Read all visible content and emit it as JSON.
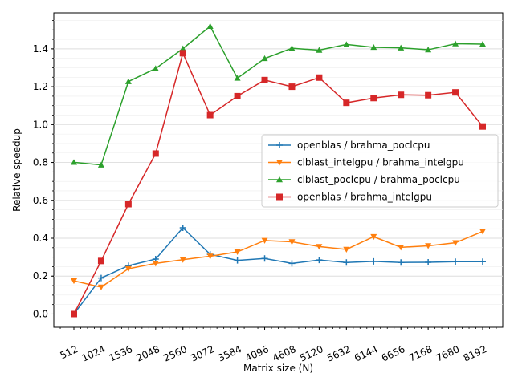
{
  "chart_data": {
    "type": "line",
    "xlabel": "Matrix size (N)",
    "ylabel": "Relative speedup",
    "categories": [
      "512",
      "1024",
      "1536",
      "2048",
      "2560",
      "3072",
      "3584",
      "4096",
      "4608",
      "5120",
      "5632",
      "6144",
      "6656",
      "7168",
      "7680",
      "8192"
    ],
    "x": [
      512,
      1024,
      1536,
      2048,
      2560,
      3072,
      3584,
      4096,
      4608,
      5120,
      5632,
      6144,
      6656,
      7168,
      7680,
      8192
    ],
    "ylim": [
      -0.07,
      1.59
    ],
    "yticks": [
      0.0,
      0.2,
      0.4,
      0.6,
      0.8,
      1.0,
      1.2,
      1.4
    ],
    "ytick_labels": [
      "0.0",
      "0.2",
      "0.4",
      "0.6",
      "0.8",
      "1.0",
      "1.2",
      "1.4"
    ],
    "grid": "horizontal",
    "legend_position": "center-right",
    "series": [
      {
        "name": "openblas / brahma_poclcpu",
        "color": "#1f77b4",
        "marker": "plus",
        "values": [
          0.0,
          0.19,
          0.255,
          0.29,
          0.455,
          0.315,
          0.283,
          0.293,
          0.267,
          0.285,
          0.272,
          0.278,
          0.272,
          0.273,
          0.276,
          0.276
        ]
      },
      {
        "name": "clblast_intelgpu / brahma_intelgpu",
        "color": "#ff7f0e",
        "marker": "triangle-down",
        "values": [
          0.175,
          0.142,
          0.239,
          0.267,
          0.287,
          0.305,
          0.328,
          0.388,
          0.381,
          0.356,
          0.341,
          0.408,
          0.352,
          0.36,
          0.376,
          0.436
        ]
      },
      {
        "name": "clblast_poclcpu / brahma_poclcpu",
        "color": "#2ca02c",
        "marker": "triangle-up",
        "values": [
          0.801,
          0.787,
          1.227,
          1.296,
          1.401,
          1.519,
          1.245,
          1.349,
          1.403,
          1.393,
          1.423,
          1.408,
          1.405,
          1.395,
          1.427,
          1.425
        ]
      },
      {
        "name": "openblas / brahma_intelgpu",
        "color": "#d62728",
        "marker": "square",
        "values": [
          0.0,
          0.28,
          0.58,
          0.847,
          1.377,
          1.05,
          1.15,
          1.235,
          1.2,
          1.248,
          1.115,
          1.14,
          1.157,
          1.155,
          1.17,
          0.99
        ]
      }
    ]
  }
}
